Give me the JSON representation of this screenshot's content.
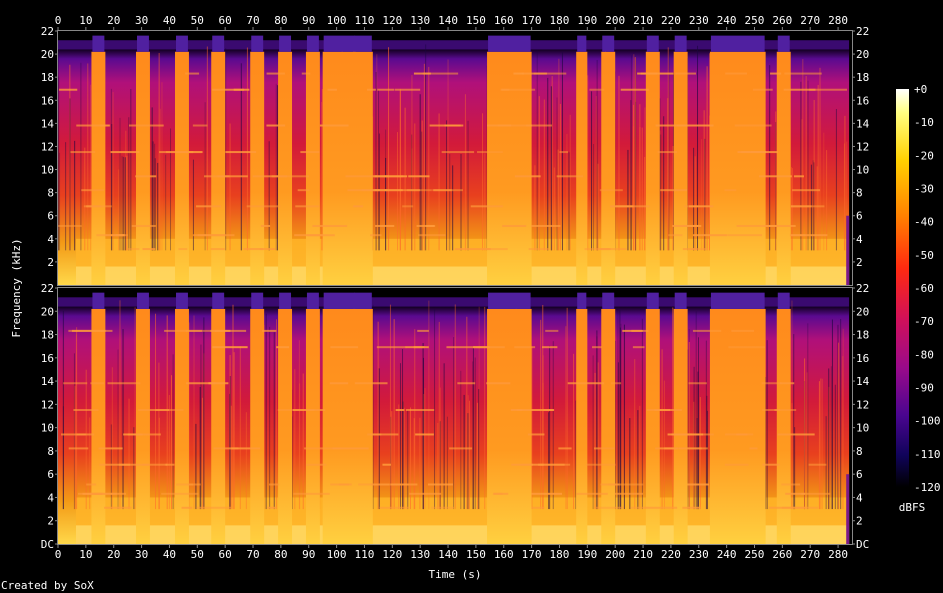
{
  "chart_data": {
    "type": "heatmap",
    "title": "",
    "xlabel": "Time (s)",
    "ylabel": "Frequency (kHz)",
    "xlim": [
      0,
      285
    ],
    "ylim": [
      0,
      22
    ],
    "x_ticks": [
      "0",
      "10",
      "20",
      "30",
      "40",
      "50",
      "60",
      "70",
      "80",
      "90",
      "100",
      "110",
      "120",
      "130",
      "140",
      "150",
      "160",
      "170",
      "180",
      "190",
      "200",
      "210",
      "220",
      "230",
      "240",
      "250",
      "260",
      "270",
      "280"
    ],
    "y_ticks_top": [
      "22",
      "20",
      "18",
      "16",
      "14",
      "12",
      "10",
      "8",
      "6",
      "4",
      "2"
    ],
    "y_ticks_bottom": [
      "22",
      "20",
      "18",
      "16",
      "14",
      "12",
      "10",
      "8",
      "6",
      "4",
      "2",
      "DC"
    ],
    "channels": 2,
    "colorbar": {
      "label": "dBFS",
      "range": [
        -120,
        0
      ],
      "ticks": [
        "+0",
        "-10",
        "-20",
        "-30",
        "-40",
        "-50",
        "-60",
        "-70",
        "-80",
        "-90",
        "-100",
        "-110",
        "-120"
      ]
    },
    "bright_bands_s": [
      [
        12,
        17
      ],
      [
        28,
        33
      ],
      [
        42,
        47
      ],
      [
        55,
        60
      ],
      [
        69,
        74
      ],
      [
        79,
        84
      ],
      [
        89,
        94
      ],
      [
        95,
        107
      ],
      [
        106,
        113
      ],
      [
        154,
        170
      ],
      [
        186,
        190
      ],
      [
        195,
        200
      ],
      [
        211,
        216
      ],
      [
        221,
        226
      ],
      [
        234,
        254
      ],
      [
        258,
        263
      ]
    ],
    "audio_end_s": 284
  },
  "footer": {
    "credit": "Created by SoX"
  }
}
